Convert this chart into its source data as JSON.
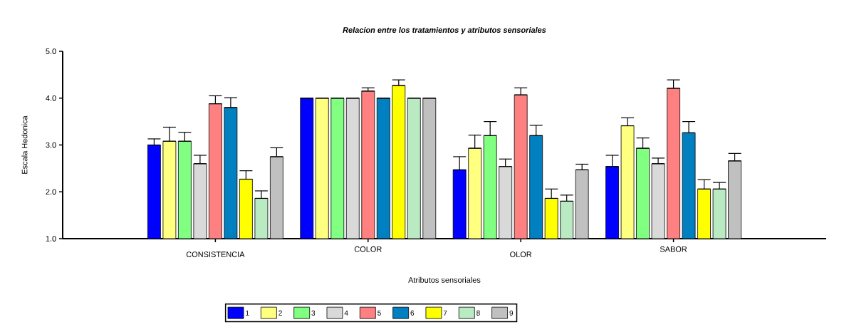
{
  "chart_data": {
    "type": "bar",
    "title": "Relacion entre los tratamientos y atributos sensoriales",
    "xlabel": "Atributos sensoriales",
    "ylabel": "Escala Hedonica",
    "categories": [
      "CONSISTENCIA",
      "COLOR",
      "OLOR",
      "SABOR"
    ],
    "ylim": [
      1,
      5
    ],
    "yticks": [
      {
        "value": 1,
        "label": "1.0"
      },
      {
        "value": 2,
        "label": "2.0"
      },
      {
        "value": 3,
        "label": "3.0"
      },
      {
        "value": 4,
        "label": "4.0"
      },
      {
        "value": 5,
        "label": "5.0"
      }
    ],
    "legend": "bottom",
    "series": [
      {
        "name": "1",
        "color": "#0000ff",
        "values": [
          3.0,
          4.0,
          2.47,
          2.54
        ],
        "errors": [
          [
            3.0,
            3.13
          ],
          [
            4.0,
            4.0
          ],
          [
            2.47,
            2.75
          ],
          [
            2.54,
            2.78
          ]
        ]
      },
      {
        "name": "2",
        "color": "#ffff80",
        "values": [
          3.08,
          4.0,
          2.93,
          3.41
        ],
        "errors": [
          [
            3.08,
            3.38
          ],
          [
            4.0,
            4.0
          ],
          [
            2.93,
            3.21
          ],
          [
            3.41,
            3.58
          ]
        ]
      },
      {
        "name": "3",
        "color": "#80ff80",
        "values": [
          3.08,
          4.0,
          3.2,
          2.93
        ],
        "errors": [
          [
            3.08,
            3.27
          ],
          [
            4.0,
            4.0
          ],
          [
            3.2,
            3.5
          ],
          [
            2.93,
            3.15
          ]
        ]
      },
      {
        "name": "4",
        "color": "#d9d9d9",
        "values": [
          2.6,
          4.0,
          2.54,
          2.6
        ],
        "errors": [
          [
            2.6,
            2.78
          ],
          [
            4.0,
            4.0
          ],
          [
            2.54,
            2.7
          ],
          [
            2.6,
            2.72
          ]
        ]
      },
      {
        "name": "5",
        "color": "#ff8080",
        "values": [
          3.88,
          4.15,
          4.07,
          4.21
        ],
        "errors": [
          [
            3.88,
            4.05
          ],
          [
            4.15,
            4.22
          ],
          [
            4.07,
            4.22
          ],
          [
            4.21,
            4.39
          ]
        ]
      },
      {
        "name": "6",
        "color": "#0080c0",
        "values": [
          3.8,
          4.0,
          3.2,
          3.26
        ],
        "errors": [
          [
            3.8,
            4.01
          ],
          [
            4.0,
            4.0
          ],
          [
            3.2,
            3.42
          ],
          [
            3.26,
            3.5
          ]
        ]
      },
      {
        "name": "7",
        "color": "#ffff00",
        "values": [
          2.27,
          4.27,
          1.86,
          2.06
        ],
        "errors": [
          [
            2.27,
            2.45
          ],
          [
            4.27,
            4.39
          ],
          [
            1.86,
            2.06
          ],
          [
            2.06,
            2.26
          ]
        ]
      },
      {
        "name": "8",
        "color": "#b9eac2",
        "values": [
          1.86,
          4.0,
          1.8,
          2.06
        ],
        "errors": [
          [
            1.86,
            2.02
          ],
          [
            4.0,
            4.0
          ],
          [
            1.8,
            1.93
          ],
          [
            2.06,
            2.2
          ]
        ]
      },
      {
        "name": "9",
        "color": "#c0c0c0",
        "values": [
          2.75,
          4.0,
          2.47,
          2.66
        ],
        "errors": [
          [
            2.75,
            2.94
          ],
          [
            4.0,
            4.0
          ],
          [
            2.47,
            2.59
          ],
          [
            2.66,
            2.82
          ]
        ]
      }
    ]
  }
}
